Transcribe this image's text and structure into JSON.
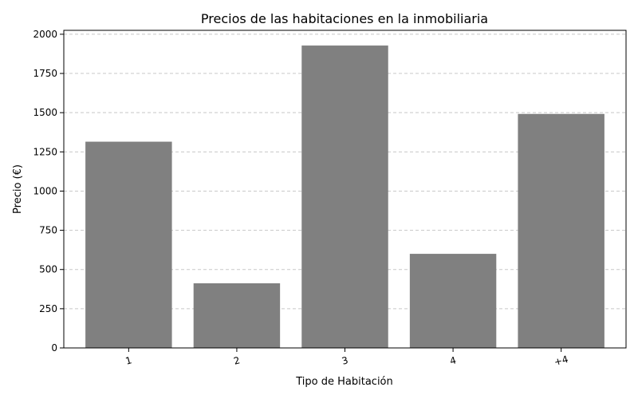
{
  "chart_data": {
    "type": "bar",
    "title": "Precios de las habitaciones en la inmobiliaria",
    "xlabel": "Tipo de Habitación",
    "ylabel": "Precio (€)",
    "categories": [
      "1",
      "2",
      "3",
      "4",
      "+4"
    ],
    "values": [
      1315,
      412,
      1928,
      600,
      1492
    ],
    "ylim": [
      0,
      2025
    ],
    "yticks": [
      0,
      250,
      500,
      750,
      1000,
      1250,
      1500,
      1750,
      2000
    ],
    "grid": "y-dashed",
    "bar_color": "#808080",
    "grid_color": "#c8c8c8"
  }
}
